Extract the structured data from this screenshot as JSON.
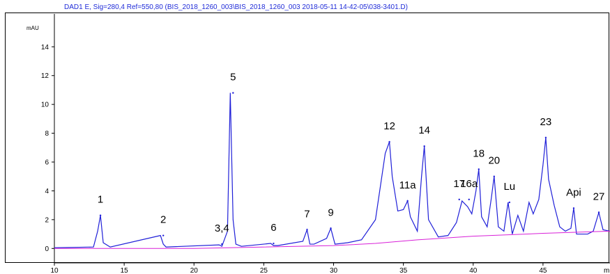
{
  "chart_data": {
    "type": "line",
    "title": "DAD1 E, Sig=280,4 Ref=550,80 (BIS_2018_1260_003\\BIS_2018_1260_003 2018-05-11 14-42-05\\038-3401.D)",
    "ylabel": "mAU",
    "xlabel": "m",
    "xlim": [
      10,
      49.8
    ],
    "ylim": [
      -1.0,
      15.8
    ],
    "x_ticks": [
      10,
      15,
      20,
      25,
      30,
      35,
      40,
      45
    ],
    "y_ticks": [
      0,
      2,
      4,
      6,
      8,
      10,
      12,
      14
    ],
    "x_tick_labels": [
      "10",
      "15",
      "20",
      "25",
      "30",
      "35",
      "40",
      "45"
    ],
    "y_tick_labels": [
      "0",
      "2",
      "4",
      "6",
      "8",
      "10",
      "12",
      "14"
    ],
    "series": [
      {
        "color": "#1f1fd8",
        "x": [
          10.0,
          12.8,
          13.1,
          13.3,
          13.5,
          14.0,
          17.6,
          17.8,
          18.0,
          21.8,
          22.0,
          22.4,
          22.6,
          22.8,
          23.0,
          23.4,
          25.5,
          25.7,
          26.0,
          27.8,
          28.1,
          28.3,
          28.6,
          29.5,
          29.8,
          30.1,
          31.0,
          32.0,
          33.0,
          33.7,
          34.0,
          34.2,
          34.6,
          35.0,
          35.3,
          35.5,
          36.0,
          36.3,
          36.5,
          36.8,
          37.5,
          38.2,
          38.8,
          39.2,
          39.6,
          39.9,
          40.2,
          40.4,
          40.6,
          41.0,
          41.3,
          41.5,
          41.8,
          42.2,
          42.5,
          42.8,
          43.2,
          43.6,
          44.0,
          44.3,
          44.7,
          45.0,
          45.2,
          45.4,
          45.8,
          46.2,
          46.6,
          47.0,
          47.2,
          47.4,
          47.8,
          48.2,
          48.6,
          49.0,
          49.3,
          49.8
        ],
        "y": [
          0.05,
          0.1,
          1.2,
          2.3,
          0.4,
          0.1,
          0.9,
          0.3,
          0.1,
          0.25,
          0.15,
          1.2,
          10.8,
          2.0,
          0.3,
          0.15,
          0.35,
          0.2,
          0.2,
          0.5,
          1.3,
          0.3,
          0.3,
          0.7,
          1.4,
          0.3,
          0.4,
          0.6,
          2.0,
          6.6,
          7.4,
          5.0,
          2.6,
          2.7,
          3.3,
          2.2,
          1.2,
          5.0,
          7.1,
          2.0,
          0.8,
          0.9,
          1.8,
          3.3,
          2.9,
          2.4,
          4.0,
          5.5,
          2.2,
          1.5,
          3.5,
          5.0,
          1.5,
          1.2,
          3.2,
          1.0,
          2.3,
          1.2,
          3.2,
          2.4,
          3.4,
          5.8,
          7.7,
          4.8,
          3.0,
          1.5,
          1.2,
          1.4,
          2.8,
          1.0,
          1.0,
          1.0,
          1.2,
          2.5,
          1.3,
          1.2
        ]
      },
      {
        "color": "#d81fd8",
        "x": [
          10.0,
          20.0,
          30.0,
          33.0,
          36.0,
          40.0,
          45.0,
          49.8
        ],
        "y": [
          0.0,
          0.0,
          0.2,
          0.35,
          0.6,
          0.85,
          1.05,
          1.2
        ]
      }
    ],
    "peaks": [
      {
        "label": "1",
        "x": 13.3,
        "y": 2.3
      },
      {
        "label": "2",
        "x": 17.8,
        "y": 0.9
      },
      {
        "label": "3,4",
        "x": 22.0,
        "y": 0.3
      },
      {
        "label": "5",
        "x": 22.8,
        "y": 10.8
      },
      {
        "label": "6",
        "x": 25.7,
        "y": 0.35
      },
      {
        "label": "7",
        "x": 28.1,
        "y": 1.3
      },
      {
        "label": "9",
        "x": 29.8,
        "y": 1.4
      },
      {
        "label": "12",
        "x": 34.0,
        "y": 7.4
      },
      {
        "label": "11a",
        "x": 35.3,
        "y": 3.3
      },
      {
        "label": "14",
        "x": 36.5,
        "y": 7.1
      },
      {
        "label": "17",
        "x": 39.0,
        "y": 3.4
      },
      {
        "label": "16a",
        "x": 39.7,
        "y": 3.4
      },
      {
        "label": "18",
        "x": 40.4,
        "y": 5.5
      },
      {
        "label": "20",
        "x": 41.5,
        "y": 5.0
      },
      {
        "label": "Lu",
        "x": 42.6,
        "y": 3.2
      },
      {
        "label": "23",
        "x": 45.2,
        "y": 7.7
      },
      {
        "label": "Api",
        "x": 47.2,
        "y": 2.8
      },
      {
        "label": "27",
        "x": 49.0,
        "y": 2.5
      }
    ]
  }
}
